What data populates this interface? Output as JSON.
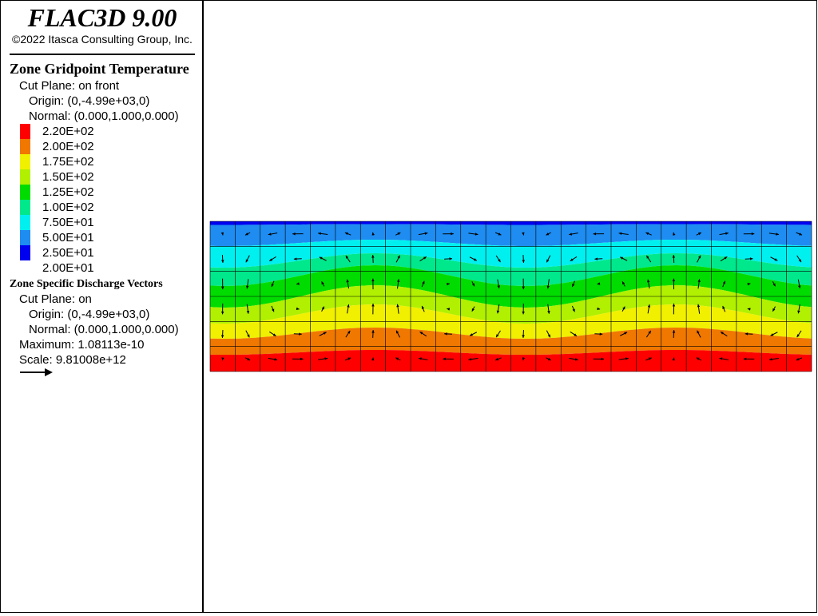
{
  "app": {
    "title": "FLAC3D 9.00",
    "copyright": "©2022 Itasca Consulting Group, Inc."
  },
  "temperature_plot": {
    "heading": "Zone Gridpoint Temperature",
    "cut_plane": "Cut Plane: on front",
    "origin": "Origin: (0,-4.99e+03,0)",
    "normal": "Normal: (0.000,1.000,0.000)",
    "legend": [
      {
        "label": "2.20E+02",
        "color": "#ff0000"
      },
      {
        "label": "2.00E+02",
        "color": "#f07800"
      },
      {
        "label": "1.75E+02",
        "color": "#f0f000"
      },
      {
        "label": "1.50E+02",
        "color": "#b0f000"
      },
      {
        "label": "1.25E+02",
        "color": "#00dc00"
      },
      {
        "label": "1.00E+02",
        "color": "#00e88c"
      },
      {
        "label": "7.50E+01",
        "color": "#00f0f0"
      },
      {
        "label": "5.00E+01",
        "color": "#1e8cf0"
      },
      {
        "label": "2.50E+01",
        "color": "#0000f0"
      },
      {
        "label": "2.00E+01",
        "color": ""
      }
    ]
  },
  "vector_plot": {
    "heading": "Zone Specific Discharge Vectors",
    "cut_plane": "Cut Plane: on",
    "origin": "Origin: (0,-4.99e+03,0)",
    "normal": "Normal: (0.000,1.000,0.000)",
    "maximum": "Maximum: 1.08113e-10",
    "scale": "Scale: 9.81008e+12",
    "scale_icon": "arrow-right-icon"
  },
  "model": {
    "bands_top_to_bottom": [
      "#0000f0",
      "#1e8cf0",
      "#00f0f0",
      "#00e88c",
      "#00dc00",
      "#b0f000",
      "#f0f000",
      "#f07800",
      "#ff0000"
    ],
    "mesh_columns": 24,
    "mesh_rows": 6,
    "mesh_color": "#000000"
  }
}
